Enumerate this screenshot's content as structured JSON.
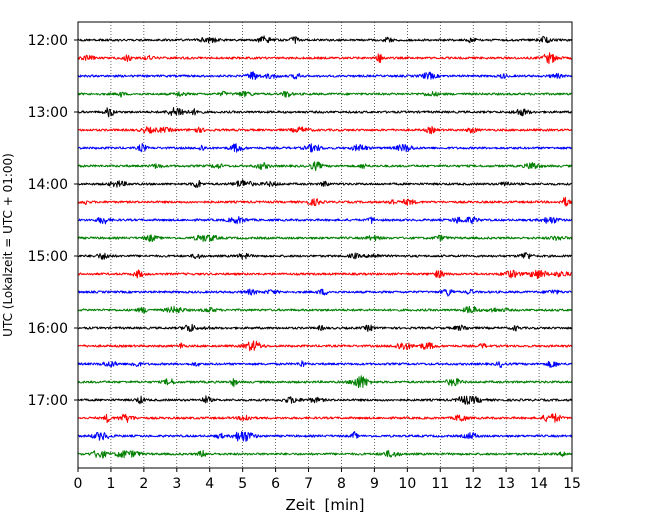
{
  "chart_data": {
    "type": "line",
    "subtype": "helicorder-seismogram",
    "title": "",
    "xlabel": "Zeit  [min]",
    "ylabel": "UTC (Lokalzeit = UTC + 01:00)",
    "xlim": [
      0,
      15
    ],
    "x_ticks": [
      "0",
      "1",
      "2",
      "3",
      "4",
      "5",
      "6",
      "7",
      "8",
      "9",
      "10",
      "11",
      "12",
      "13",
      "14",
      "15"
    ],
    "y_tick_labels": [
      "12:00",
      "13:00",
      "14:00",
      "15:00",
      "16:00",
      "17:00"
    ],
    "grid": "vertical dotted lines at each minute",
    "minutes_per_trace": 15,
    "trace_color_cycle": [
      "#000000",
      "#ff0000",
      "#0000ff",
      "#007f00"
    ],
    "traces": [
      {
        "start_utc": "12:00",
        "color": "#000000"
      },
      {
        "start_utc": "12:15",
        "color": "#ff0000"
      },
      {
        "start_utc": "12:30",
        "color": "#0000ff"
      },
      {
        "start_utc": "12:45",
        "color": "#007f00"
      },
      {
        "start_utc": "13:00",
        "color": "#000000"
      },
      {
        "start_utc": "13:15",
        "color": "#ff0000"
      },
      {
        "start_utc": "13:30",
        "color": "#0000ff"
      },
      {
        "start_utc": "13:45",
        "color": "#007f00"
      },
      {
        "start_utc": "14:00",
        "color": "#000000"
      },
      {
        "start_utc": "14:15",
        "color": "#ff0000"
      },
      {
        "start_utc": "14:30",
        "color": "#0000ff"
      },
      {
        "start_utc": "14:45",
        "color": "#007f00"
      },
      {
        "start_utc": "15:00",
        "color": "#000000"
      },
      {
        "start_utc": "15:15",
        "color": "#ff0000"
      },
      {
        "start_utc": "15:30",
        "color": "#0000ff"
      },
      {
        "start_utc": "15:45",
        "color": "#007f00"
      },
      {
        "start_utc": "16:00",
        "color": "#000000"
      },
      {
        "start_utc": "16:15",
        "color": "#ff0000"
      },
      {
        "start_utc": "16:30",
        "color": "#0000ff"
      },
      {
        "start_utc": "16:45",
        "color": "#007f00"
      },
      {
        "start_utc": "17:00",
        "color": "#000000"
      },
      {
        "start_utc": "17:15",
        "color": "#ff0000"
      },
      {
        "start_utc": "17:30",
        "color": "#0000ff"
      },
      {
        "start_utc": "17:45",
        "color": "#007f00"
      }
    ]
  }
}
